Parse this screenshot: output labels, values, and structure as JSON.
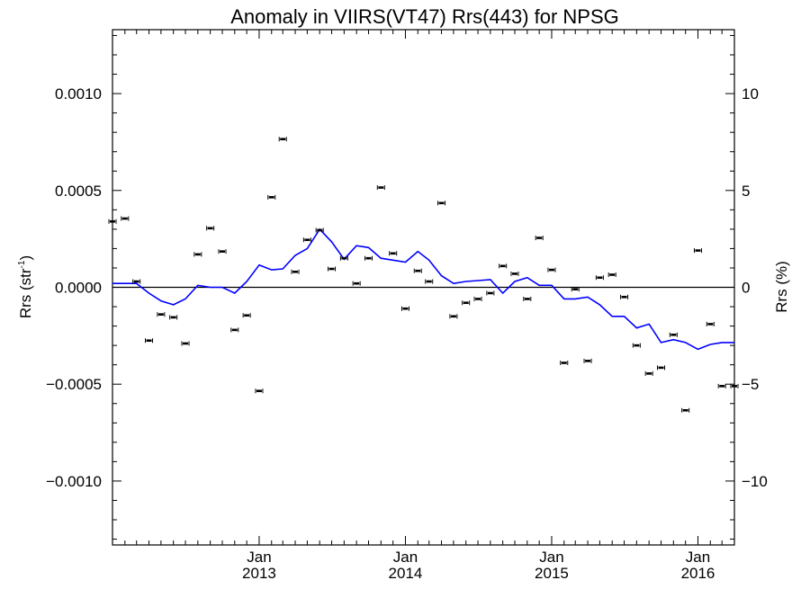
{
  "chart_data": {
    "type": "scatter",
    "title": "Anomaly in VIIRS(VT47) Rrs(443) for NPSG",
    "ylabel_left": {
      "base": "Rrs (str",
      "sup": "-1",
      "close": ")"
    },
    "ylabel_right": "Rrs (%)",
    "xlim": [
      "2012-01-01",
      "2016-04-01"
    ],
    "ylim": [
      -0.00133,
      0.00133
    ],
    "ylim_right": [
      -13.3,
      13.3
    ],
    "zero_line": true,
    "x_ticks": [
      {
        "date": "2013-01-01",
        "month": "Jan",
        "year": "2013"
      },
      {
        "date": "2014-01-01",
        "month": "Jan",
        "year": "2014"
      },
      {
        "date": "2015-01-01",
        "month": "Jan",
        "year": "2015"
      },
      {
        "date": "2016-01-01",
        "month": "Jan",
        "year": "2016"
      }
    ],
    "y_ticks_left": [
      {
        "value": 0.001,
        "label": "0.0010"
      },
      {
        "value": 0.0005,
        "label": "0.0005"
      },
      {
        "value": 0.0,
        "label": "0.0000"
      },
      {
        "value": -0.0005,
        "label": "−0.0005"
      },
      {
        "value": -0.001,
        "label": "−0.0010"
      }
    ],
    "y_ticks_right": [
      {
        "value": 10,
        "label": "10"
      },
      {
        "value": 5,
        "label": "5"
      },
      {
        "value": 0,
        "label": "0"
      },
      {
        "value": -5,
        "label": "−5"
      },
      {
        "value": -10,
        "label": "−10"
      }
    ],
    "colors": {
      "points": "#000000",
      "line": "#0000ff",
      "axes": "#000000"
    },
    "series": [
      {
        "kind": "monthly_anomaly_points",
        "x": [
          "2012-01-01",
          "2012-02-01",
          "2012-03-01",
          "2012-04-01",
          "2012-05-01",
          "2012-06-01",
          "2012-07-01",
          "2012-08-01",
          "2012-09-01",
          "2012-10-01",
          "2012-11-01",
          "2012-12-01",
          "2013-01-01",
          "2013-02-01",
          "2013-03-01",
          "2013-04-01",
          "2013-05-01",
          "2013-06-01",
          "2013-07-01",
          "2013-08-01",
          "2013-09-01",
          "2013-10-01",
          "2013-11-01",
          "2013-12-01",
          "2014-01-01",
          "2014-02-01",
          "2014-03-01",
          "2014-04-01",
          "2014-05-01",
          "2014-06-01",
          "2014-07-01",
          "2014-08-01",
          "2014-09-01",
          "2014-10-01",
          "2014-11-01",
          "2014-12-01",
          "2015-01-01",
          "2015-02-01",
          "2015-03-01",
          "2015-04-01",
          "2015-05-01",
          "2015-06-01",
          "2015-07-01",
          "2015-08-01",
          "2015-09-01",
          "2015-10-01",
          "2015-11-01",
          "2015-12-01",
          "2016-01-01",
          "2016-02-01",
          "2016-03-01",
          "2016-04-01"
        ],
        "y": [
          0.00034,
          0.000355,
          3e-05,
          -0.000275,
          -0.00014,
          -0.000155,
          -0.00029,
          0.00017,
          0.000305,
          0.000185,
          -0.00022,
          -0.000145,
          -0.000535,
          0.000465,
          0.000765,
          8e-05,
          0.000245,
          0.000295,
          9.5e-05,
          0.00015,
          2e-05,
          0.00015,
          0.000515,
          0.000175,
          -0.00011,
          8.5e-05,
          3e-05,
          0.000435,
          -0.00015,
          -8e-05,
          -6e-05,
          -3e-05,
          0.00011,
          7e-05,
          -6e-05,
          0.000255,
          9e-05,
          -0.00039,
          -1e-05,
          -0.00038,
          5e-05,
          6.5e-05,
          -5e-05,
          -0.0003,
          -0.000445,
          -0.000415,
          -0.000245,
          -0.000635,
          0.00019,
          -0.00019,
          -0.00051,
          -0.00051
        ]
      },
      {
        "kind": "running_mean_line",
        "x": [
          "2012-01-01",
          "2012-02-01",
          "2012-03-01",
          "2012-04-01",
          "2012-05-01",
          "2012-06-01",
          "2012-07-01",
          "2012-08-01",
          "2012-09-01",
          "2012-10-01",
          "2012-11-01",
          "2012-12-01",
          "2013-01-01",
          "2013-02-01",
          "2013-03-01",
          "2013-04-01",
          "2013-05-01",
          "2013-06-01",
          "2013-07-01",
          "2013-08-01",
          "2013-09-01",
          "2013-10-01",
          "2013-11-01",
          "2013-12-01",
          "2014-01-01",
          "2014-02-01",
          "2014-03-01",
          "2014-04-01",
          "2014-05-01",
          "2014-06-01",
          "2014-07-01",
          "2014-08-01",
          "2014-09-01",
          "2014-10-01",
          "2014-11-01",
          "2014-12-01",
          "2015-01-01",
          "2015-02-01",
          "2015-03-01",
          "2015-04-01",
          "2015-05-01",
          "2015-06-01",
          "2015-07-01",
          "2015-08-01",
          "2015-09-01",
          "2015-10-01",
          "2015-11-01",
          "2015-12-01",
          "2016-01-01",
          "2016-02-01",
          "2016-03-01",
          "2016-04-01"
        ],
        "y": [
          2e-05,
          2e-05,
          2e-05,
          -3e-05,
          -7e-05,
          -9e-05,
          -6e-05,
          1e-05,
          0.0,
          0.0,
          -3e-05,
          3e-05,
          0.000115,
          9e-05,
          9.5e-05,
          0.000165,
          0.0002,
          0.0003,
          0.000235,
          0.000145,
          0.000215,
          0.000205,
          0.00015,
          0.00014,
          0.00013,
          0.000185,
          0.00014,
          6e-05,
          2e-05,
          3e-05,
          3.5e-05,
          4e-05,
          -3e-05,
          3e-05,
          5e-05,
          1e-05,
          1e-05,
          -6e-05,
          -6e-05,
          -5e-05,
          -9e-05,
          -0.00015,
          -0.00015,
          -0.00021,
          -0.00019,
          -0.000285,
          -0.00027,
          -0.000285,
          -0.00032,
          -0.000295,
          -0.000285,
          -0.000285
        ]
      }
    ]
  }
}
